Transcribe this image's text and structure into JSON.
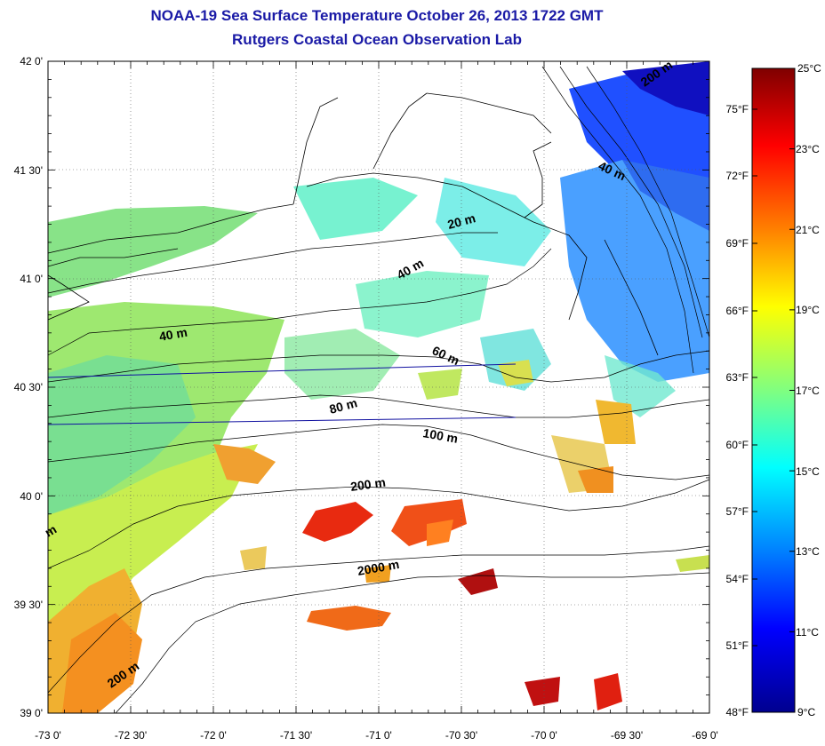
{
  "header": {
    "title": "NOAA-19 Sea Surface Temperature October 26, 2013 1722 GMT",
    "subtitle": "Rutgers Coastal Ocean Observation Lab"
  },
  "map": {
    "lon_labels": [
      "-73 0'",
      "-72 30'",
      "-72 0'",
      "-71 30'",
      "-71 0'",
      "-70 30'",
      "-70 0'",
      "-69 30'",
      "-69 0'"
    ],
    "lat_labels": [
      "42 0'",
      "41 30'",
      "41 0'",
      "40 30'",
      "40 0'",
      "39 30'",
      "39 0'"
    ],
    "depth_labels": [
      "20 m",
      "40 m",
      "40 m",
      "40 m",
      "60 m",
      "80 m",
      "100 m",
      "200 m",
      "2000 m",
      "200 m",
      "m",
      "200 m"
    ]
  },
  "colorbar": {
    "celsius_labels": [
      "25°C",
      "23°C",
      "21°C",
      "19°C",
      "17°C",
      "15°C",
      "13°C",
      "11°C",
      "9°C"
    ],
    "fahrenheit_labels": [
      "75°F",
      "72°F",
      "69°F",
      "66°F",
      "63°F",
      "60°F",
      "57°F",
      "54°F",
      "51°F",
      "48°F"
    ],
    "colors": [
      "#7f0000",
      "#ff0000",
      "#ff8000",
      "#ffff00",
      "#80ff80",
      "#00ffff",
      "#0080ff",
      "#0000ff",
      "#00008f"
    ]
  }
}
